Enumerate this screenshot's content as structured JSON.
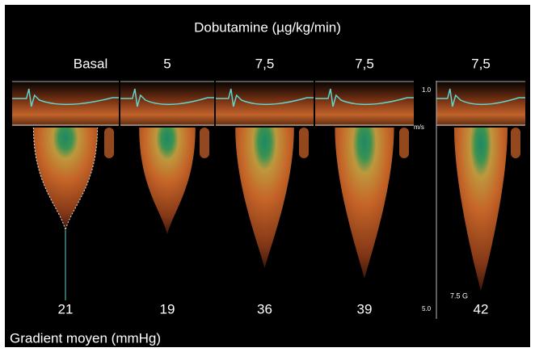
{
  "title": "Dobutamine (µg/kg/min)",
  "panels": [
    {
      "label": "Basal",
      "gradient": 21
    },
    {
      "label": "5",
      "gradient": 19
    },
    {
      "label": "7,5",
      "gradient": 36
    },
    {
      "label": "7,5",
      "gradient": 39
    },
    {
      "label": "7,5",
      "gradient": 42
    }
  ],
  "scale": {
    "top": "1.0",
    "unit": "m/s",
    "bottom": "5.0"
  },
  "probe": "7.5 G",
  "footer": "Gradient moyen (mmHg)"
}
